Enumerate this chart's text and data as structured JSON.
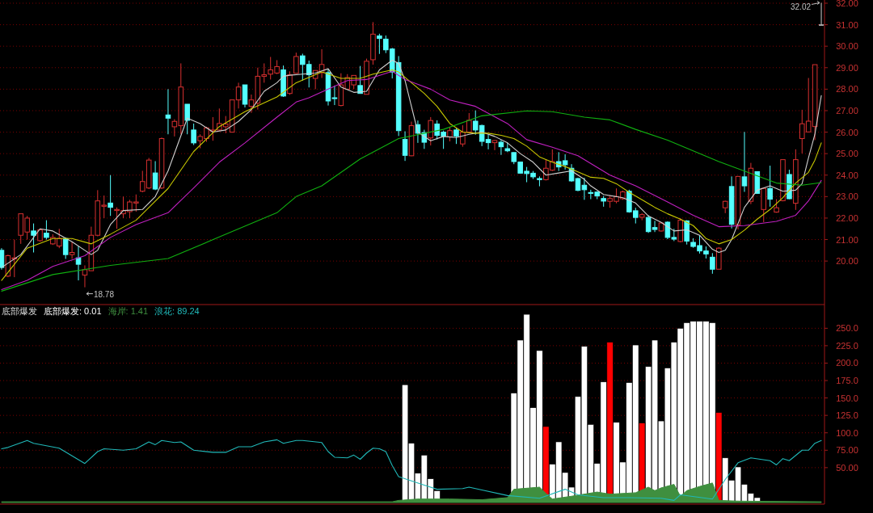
{
  "chart_data": [
    {
      "type": "candlestick",
      "categories": [
        null,
        null,
        null,
        null,
        null,
        null,
        null,
        null,
        null,
        null,
        null,
        null,
        null,
        null,
        null,
        null,
        null,
        null,
        null,
        null,
        null,
        null,
        null,
        null,
        null,
        null,
        null,
        null,
        null,
        null,
        null,
        null,
        null,
        null,
        null,
        null,
        null,
        null,
        null,
        null,
        null,
        null,
        null,
        null,
        null,
        null,
        null,
        null,
        null,
        null,
        null,
        null,
        null,
        null,
        null,
        null,
        null,
        null,
        null,
        null,
        null,
        null,
        null,
        null,
        null,
        null,
        null,
        null,
        null,
        null,
        null,
        null,
        null,
        null,
        null,
        null,
        null,
        null,
        null,
        null,
        null,
        null,
        null,
        null,
        null,
        null,
        null,
        null,
        null,
        null,
        null,
        null,
        null,
        null,
        null,
        null,
        null,
        null,
        null,
        null,
        null,
        null,
        null,
        null,
        null,
        null,
        null,
        null,
        null,
        null,
        null,
        null,
        null,
        null,
        null,
        null,
        null,
        null,
        null,
        null,
        null,
        null,
        null,
        null,
        null,
        null,
        null,
        null,
        null
      ],
      "ohlc": [
        [
          20.5,
          20.6,
          19.6,
          19.7
        ],
        [
          19.3,
          20.3,
          19.25,
          20.25
        ],
        [
          20.1,
          21.0,
          19.25,
          20.15
        ],
        [
          21.2,
          22.2,
          20.8,
          22.2
        ],
        [
          21.35,
          22.1,
          21.0,
          22.0
        ],
        [
          21.4,
          21.75,
          20.4,
          21.2
        ],
        [
          20.95,
          21.5,
          20.9,
          21.45
        ],
        [
          21.3,
          21.9,
          21.0,
          21.1
        ],
        [
          20.8,
          21.25,
          20.75,
          21.1
        ],
        [
          20.7,
          21.5,
          20.6,
          21.05
        ],
        [
          21.05,
          21.1,
          20.1,
          20.3
        ],
        [
          20.3,
          20.9,
          20.1,
          20.4
        ],
        [
          20.15,
          20.7,
          19.1,
          19.85
        ],
        [
          19.35,
          19.8,
          18.78,
          19.6
        ],
        [
          19.55,
          21.6,
          19.55,
          21.2
        ],
        [
          21.2,
          23.3,
          21.15,
          22.8
        ],
        [
          22.55,
          23.05,
          22.0,
          22.6
        ],
        [
          22.7,
          24.0,
          22.1,
          22.5
        ],
        [
          22.35,
          22.5,
          21.5,
          22.4
        ],
        [
          22.2,
          23.0,
          22.0,
          22.35
        ],
        [
          22.3,
          22.85,
          22.0,
          22.75
        ],
        [
          22.7,
          23.1,
          22.3,
          22.75
        ],
        [
          23.25,
          24.2,
          23.2,
          23.7
        ],
        [
          23.4,
          24.8,
          23.35,
          24.7
        ],
        [
          24.1,
          24.65,
          23.3,
          23.35
        ],
        [
          23.4,
          25.75,
          23.35,
          25.7
        ],
        [
          26.8,
          28.0,
          25.9,
          26.65
        ],
        [
          26.25,
          26.6,
          25.8,
          26.5
        ],
        [
          26.3,
          29.2,
          25.9,
          28.1
        ],
        [
          27.3,
          27.3,
          25.9,
          26.55
        ],
        [
          26.1,
          26.4,
          25.4,
          25.5
        ],
        [
          25.6,
          25.9,
          25.25,
          25.8
        ],
        [
          25.7,
          26.25,
          25.55,
          26.2
        ],
        [
          26.05,
          26.7,
          25.6,
          26.1
        ],
        [
          26.1,
          27.1,
          26.07,
          26.4
        ],
        [
          26.25,
          26.75,
          25.95,
          26.38
        ],
        [
          26.0,
          27.5,
          25.98,
          27.5
        ],
        [
          27.5,
          28.3,
          27.1,
          28.1
        ],
        [
          28.2,
          28.2,
          27.15,
          27.3
        ],
        [
          27.2,
          27.75,
          26.9,
          27.5
        ],
        [
          27.35,
          29.0,
          27.05,
          28.6
        ],
        [
          28.6,
          29.2,
          28.3,
          28.67
        ],
        [
          28.7,
          29.5,
          28.45,
          28.9
        ],
        [
          28.75,
          29.35,
          28.7,
          29.05
        ],
        [
          28.9,
          29.1,
          27.64,
          27.68
        ],
        [
          27.8,
          28.83,
          27.74,
          28.67
        ],
        [
          28.74,
          29.7,
          28.74,
          29.52
        ],
        [
          29.55,
          29.65,
          28.4,
          29.15
        ],
        [
          29.15,
          29.33,
          28.08,
          28.67
        ],
        [
          28.5,
          28.87,
          28.0,
          28.87
        ],
        [
          28.77,
          29.86,
          28.52,
          29.15
        ],
        [
          28.77,
          28.95,
          27.24,
          27.45
        ],
        [
          27.6,
          28.17,
          27.26,
          27.56
        ],
        [
          27.24,
          28.74,
          27.2,
          28.2
        ],
        [
          28.0,
          28.7,
          28.0,
          28.54
        ],
        [
          28.2,
          28.64,
          28.0,
          28.64
        ],
        [
          28.17,
          29.08,
          27.79,
          27.8
        ],
        [
          27.76,
          29.42,
          27.76,
          29.3
        ],
        [
          29.37,
          31.12,
          29.14,
          30.56
        ],
        [
          30.48,
          30.58,
          29.64,
          30.36
        ],
        [
          30.33,
          30.5,
          29.68,
          29.83
        ],
        [
          29.87,
          29.92,
          28.5,
          28.8
        ],
        [
          29.24,
          29.54,
          25.82,
          26.07
        ],
        [
          25.66,
          26.04,
          24.66,
          24.92
        ],
        [
          24.9,
          26.49,
          24.88,
          26.3
        ],
        [
          26.35,
          26.54,
          25.5,
          25.95
        ],
        [
          25.98,
          26.11,
          25.22,
          25.53
        ],
        [
          25.73,
          26.7,
          25.38,
          26.54
        ],
        [
          26.38,
          26.55,
          25.66,
          25.85
        ],
        [
          26.0,
          26.07,
          25.22,
          25.82
        ],
        [
          25.78,
          26.22,
          25.57,
          26.07
        ],
        [
          26.1,
          26.2,
          25.45,
          25.82
        ],
        [
          25.45,
          26.32,
          25.32,
          26.0
        ],
        [
          26.0,
          26.89,
          25.95,
          26.55
        ],
        [
          26.51,
          27.01,
          25.88,
          26.1
        ],
        [
          26.31,
          26.35,
          25.35,
          25.57
        ],
        [
          25.66,
          25.88,
          25.2,
          25.51
        ],
        [
          25.51,
          25.63,
          25.16,
          25.61
        ],
        [
          25.53,
          25.63,
          24.94,
          25.32
        ],
        [
          25.23,
          25.51,
          25.07,
          25.13
        ],
        [
          25.05,
          25.07,
          24.51,
          24.63
        ],
        [
          24.61,
          24.63,
          24.07,
          24.09
        ],
        [
          24.18,
          24.38,
          23.67,
          24.07
        ],
        [
          24.09,
          24.19,
          23.82,
          23.92
        ],
        [
          23.84,
          23.94,
          23.48,
          23.79
        ],
        [
          23.79,
          24.73,
          23.75,
          24.32
        ],
        [
          24.23,
          25.2,
          24.19,
          24.63
        ],
        [
          24.63,
          25.07,
          24.19,
          24.38
        ],
        [
          24.67,
          24.97,
          24.26,
          24.48
        ],
        [
          24.32,
          24.51,
          23.69,
          23.73
        ],
        [
          23.84,
          23.88,
          23.25,
          23.29
        ],
        [
          23.53,
          23.88,
          22.85,
          23.32
        ],
        [
          23.19,
          23.32,
          22.88,
          23.15
        ],
        [
          23.21,
          23.25,
          22.88,
          23.03
        ],
        [
          22.91,
          23.03,
          22.53,
          22.79
        ],
        [
          22.78,
          23.06,
          22.48,
          22.91
        ],
        [
          22.78,
          23.38,
          22.69,
          23.0
        ],
        [
          22.9,
          23.28,
          22.85,
          23.22
        ],
        [
          23.25,
          23.32,
          22.25,
          22.29
        ],
        [
          22.34,
          22.48,
          21.75,
          22.03
        ],
        [
          22.04,
          22.23,
          21.9,
          22.16
        ],
        [
          22.03,
          22.13,
          21.31,
          21.37
        ],
        [
          21.56,
          21.87,
          21.35,
          21.47
        ],
        [
          21.4,
          21.81,
          21.37,
          21.77
        ],
        [
          21.81,
          21.85,
          21.02,
          21.1
        ],
        [
          21.1,
          21.5,
          20.93,
          21.02
        ],
        [
          20.91,
          22.0,
          20.87,
          21.9
        ],
        [
          21.87,
          21.9,
          20.77,
          20.93
        ],
        [
          20.87,
          21.06,
          20.62,
          20.68
        ],
        [
          20.72,
          21.19,
          20.35,
          20.47
        ],
        [
          20.47,
          20.68,
          20.12,
          20.33
        ],
        [
          20.18,
          20.37,
          19.41,
          19.62
        ],
        [
          19.62,
          20.65,
          19.62,
          20.6
        ],
        [
          22.48,
          22.81,
          22.23,
          22.78
        ],
        [
          23.47,
          23.94,
          21.52,
          21.71
        ],
        [
          21.69,
          23.94,
          21.47,
          23.94
        ],
        [
          23.92,
          26.01,
          23.22,
          23.5
        ],
        [
          22.78,
          24.57,
          22.65,
          24.32
        ],
        [
          24.16,
          24.16,
          23.13,
          23.15
        ],
        [
          22.4,
          23.4,
          21.81,
          23.38
        ],
        [
          23.38,
          24.44,
          22.53,
          22.88
        ],
        [
          22.28,
          22.88,
          22.25,
          22.48
        ],
        [
          22.81,
          24.73,
          22.78,
          24.72
        ],
        [
          24.03,
          24.25,
          22.88,
          22.9
        ],
        [
          22.69,
          25.2,
          22.38,
          24.72
        ],
        [
          25.7,
          27.04,
          25.01,
          26.39
        ],
        [
          26.01,
          28.52,
          26.01,
          26.51
        ],
        [
          26.26,
          29.14,
          25.63,
          29.14
        ],
        [
          31.0,
          32.02,
          31.0,
          31.0
        ]
      ],
      "colors": [
        "#54ffff",
        "#d83030",
        "#d83030",
        "#d83030",
        "#d83030",
        "#54ffff",
        "#d83030",
        "#54ffff",
        "#d83030",
        "#d83030",
        "#54ffff",
        "#d83030",
        "#54ffff",
        "#d83030",
        "#d83030",
        "#d83030",
        "#d83030",
        "#54ffff",
        "#d83030",
        "#d83030",
        "#d83030",
        "#d83030",
        "#d83030",
        "#d83030",
        "#54ffff",
        "#d83030",
        "#54ffff",
        "#d83030",
        "#d83030",
        "#54ffff",
        "#54ffff",
        "#d83030",
        "#d83030",
        "#d83030",
        "#d83030",
        "#d83030",
        "#d83030",
        "#d83030",
        "#54ffff",
        "#d83030",
        "#d83030",
        "#d83030",
        "#d83030",
        "#d83030",
        "#54ffff",
        "#d83030",
        "#d83030",
        "#54ffff",
        "#54ffff",
        "#d83030",
        "#d83030",
        "#54ffff",
        "#54ffff",
        "#d83030",
        "#d83030",
        "#d83030",
        "#54ffff",
        "#d83030",
        "#d83030",
        "#54ffff",
        "#54ffff",
        "#54ffff",
        "#54ffff",
        "#54ffff",
        "#d83030",
        "#54ffff",
        "#54ffff",
        "#d83030",
        "#54ffff",
        "#54ffff",
        "#d83030",
        "#54ffff",
        "#d83030",
        "#d83030",
        "#54ffff",
        "#54ffff",
        "#54ffff",
        "#d83030",
        "#54ffff",
        "#54ffff",
        "#54ffff",
        "#54ffff",
        "#54ffff",
        "#54ffff",
        "#54ffff",
        "#d83030",
        "#d83030",
        "#54ffff",
        "#54ffff",
        "#54ffff",
        "#54ffff",
        "#54ffff",
        "#54ffff",
        "#54ffff",
        "#54ffff",
        "#d83030",
        "#d83030",
        "#d83030",
        "#54ffff",
        "#54ffff",
        "#d83030",
        "#54ffff",
        "#54ffff",
        "#d83030",
        "#54ffff",
        "#54ffff",
        "#d83030",
        "#54ffff",
        "#54ffff",
        "#54ffff",
        "#54ffff",
        "#54ffff",
        "#d83030",
        "#d83030",
        "#54ffff",
        "#d83030",
        "#54ffff",
        "#d83030",
        "#54ffff",
        "#d83030",
        "#54ffff",
        "#d83030",
        "#d83030",
        "#54ffff",
        "#d83030",
        "#d83030",
        "#d83030",
        "#d83030",
        "#d0d0d0"
      ],
      "series": [
        {
          "type": "line",
          "color": "#d0d0d0",
          "values": [
            19.7,
            null,
            null,
            20.3,
            null,
            null,
            21.5,
            null,
            21.4,
            null,
            null,
            20.9,
            null,
            20.5,
            20.3,
            20.5,
            null,
            21.7,
            null,
            22.35,
            null,
            null,
            22.4,
            null,
            23.0,
            null,
            24.2,
            null,
            null,
            26.65,
            null,
            26.4,
            null,
            26.0,
            null,
            26.1,
            null,
            26.5,
            null,
            27.05,
            null,
            27.9,
            null,
            28.3,
            28.6,
            28.65,
            null,
            28.7,
            null,
            28.75,
            null,
            28.95,
            null,
            28.1,
            null,
            27.85,
            null,
            27.9,
            null,
            28.9,
            null,
            29.35,
            29.2,
            28.4,
            null,
            26.0,
            null,
            25.6,
            null,
            25.8,
            null,
            25.75,
            null,
            25.9,
            null,
            26.0,
            null,
            25.8,
            null,
            25.5,
            null,
            25.0,
            null,
            24.6,
            null,
            24.0,
            null,
            24.1,
            null,
            24.2,
            null,
            23.8,
            23.5,
            null,
            23.1,
            null,
            null,
            22.95,
            null,
            22.7,
            null,
            22.1,
            null,
            21.8,
            null,
            21.4,
            null,
            21.45,
            null,
            21.2,
            null,
            20.55,
            20.4,
            20.5,
            21.0,
            null,
            22.5,
            null,
            23.3,
            null,
            23.5,
            null,
            23.25,
            null,
            23.3,
            23.6,
            24.8,
            25.9,
            27.7
          ]
        },
        {
          "type": "line",
          "color": "#c8c800",
          "values": [
            19.1,
            null,
            null,
            null,
            20.6,
            null,
            null,
            null,
            21.05,
            null,
            null,
            21.05,
            null,
            null,
            20.8,
            null,
            null,
            21.25,
            null,
            null,
            null,
            21.9,
            null,
            null,
            null,
            null,
            23.38,
            null,
            null,
            null,
            25.1,
            null,
            null,
            null,
            26.26,
            null,
            null,
            null,
            26.95,
            null,
            null,
            null,
            null,
            27.64,
            null,
            null,
            28.3,
            null,
            null,
            null,
            28.8,
            null,
            null,
            28.5,
            null,
            null,
            28.5,
            null,
            28.7,
            null,
            null,
            28.9,
            28.8,
            null,
            28.3,
            null,
            27.8,
            null,
            27.2,
            null,
            26.4,
            null,
            26.0,
            null,
            25.95,
            null,
            25.95,
            null,
            25.85,
            null,
            25.7,
            null,
            25.35,
            null,
            24.85,
            null,
            24.6,
            null,
            24.4,
            null,
            24.15,
            null,
            23.9,
            null,
            23.85,
            null,
            23.6,
            null,
            23.2,
            null,
            22.85,
            null,
            22.5,
            null,
            22.2,
            null,
            21.95,
            null,
            21.65,
            null,
            21.05,
            null,
            20.8,
            null,
            21.0,
            null,
            21.44,
            null,
            21.95,
            null,
            22.4,
            null,
            22.95,
            null,
            23.63,
            null,
            24.13,
            24.7,
            25.5
          ]
        },
        {
          "type": "line",
          "color": "#c020c0",
          "values": [
            18.67,
            null,
            null,
            null,
            19.1,
            null,
            null,
            null,
            19.75,
            null,
            null,
            null,
            null,
            20.25,
            null,
            null,
            null,
            21.1,
            null,
            null,
            null,
            21.7,
            null,
            null,
            null,
            null,
            22.25,
            null,
            null,
            null,
            23.4,
            null,
            null,
            null,
            24.6,
            null,
            null,
            null,
            25.5,
            null,
            null,
            null,
            null,
            26.7,
            null,
            null,
            27.4,
            null,
            27.6,
            null,
            null,
            28.0,
            null,
            null,
            28.4,
            null,
            null,
            28.45,
            null,
            null,
            null,
            28.83,
            null,
            28.45,
            null,
            null,
            null,
            28.0,
            null,
            null,
            27.5,
            null,
            null,
            null,
            27.2,
            null,
            null,
            null,
            null,
            26.4,
            null,
            null,
            25.65,
            null,
            null,
            null,
            25.3,
            null,
            null,
            null,
            24.9,
            null,
            null,
            null,
            null,
            24.0,
            null,
            null,
            null,
            23.5,
            null,
            null,
            null,
            null,
            22.75,
            null,
            null,
            null,
            22.13,
            null,
            null,
            null,
            21.6,
            null,
            null,
            null,
            21.65,
            null,
            null,
            null,
            null,
            21.85,
            null,
            null,
            22.13,
            null,
            22.8,
            null,
            23.75
          ]
        },
        {
          "type": "line",
          "color": "#10b010",
          "values": [
            18.6,
            null,
            null,
            null,
            null,
            null,
            null,
            null,
            19.37,
            null,
            null,
            null,
            null,
            null,
            null,
            null,
            null,
            19.8,
            null,
            null,
            null,
            null,
            null,
            null,
            null,
            null,
            20.12,
            null,
            null,
            null,
            null,
            null,
            null,
            null,
            21.12,
            null,
            null,
            null,
            null,
            null,
            null,
            null,
            null,
            22.25,
            null,
            null,
            23.0,
            null,
            null,
            null,
            23.5,
            null,
            null,
            null,
            null,
            null,
            24.75,
            null,
            null,
            null,
            null,
            null,
            25.7,
            null,
            null,
            null,
            null,
            null,
            null,
            26.13,
            null,
            null,
            null,
            null,
            null,
            26.76,
            null,
            null,
            null,
            null,
            null,
            null,
            26.99,
            null,
            null,
            null,
            26.95,
            null,
            null,
            null,
            null,
            26.7,
            null,
            null,
            null,
            26.57,
            null,
            null,
            null,
            26.13,
            null,
            null,
            null,
            null,
            25.63,
            null,
            null,
            null,
            25.13,
            null,
            null,
            null,
            24.63,
            null,
            null,
            null,
            24.19,
            null,
            null,
            null,
            null,
            23.63,
            null,
            null,
            null,
            23.53,
            null,
            null,
            23.65
          ]
        }
      ],
      "annotations": [
        "18.78",
        "32.02"
      ],
      "ylim": [
        18.05,
        32.15
      ],
      "yticks": [
        {
          "value": 20,
          "label": "20.00"
        },
        {
          "value": 21,
          "label": "21.00"
        },
        {
          "value": 22,
          "label": "22.00"
        },
        {
          "value": 23,
          "label": "23.00"
        },
        {
          "value": 24,
          "label": "24.00"
        },
        {
          "value": 25,
          "label": "25.00"
        },
        {
          "value": 26,
          "label": "26.00"
        },
        {
          "value": 27,
          "label": "27.00"
        },
        {
          "value": 28,
          "label": "28.00"
        },
        {
          "value": 29,
          "label": "29.00"
        },
        {
          "value": 30,
          "label": "30.00"
        },
        {
          "value": 31,
          "label": "31.00"
        },
        {
          "value": 32,
          "label": "32.00"
        }
      ],
      "grid": "y",
      "tick_labels": "y"
    },
    {
      "type": "bar",
      "title": "底部爆发",
      "categories": [
        null,
        null,
        null,
        null,
        null,
        null,
        null,
        null,
        null,
        null,
        null,
        null,
        null,
        null,
        null,
        null,
        null,
        null,
        null,
        null,
        null,
        null,
        null,
        null,
        null,
        null,
        null,
        null,
        null,
        null,
        null,
        null,
        null,
        null,
        null,
        null,
        null,
        null,
        null,
        null,
        null,
        null,
        null,
        null,
        null,
        null,
        null,
        null,
        null,
        null,
        null,
        null,
        null,
        null,
        null,
        null,
        null,
        null,
        null,
        null,
        null,
        null,
        null,
        null,
        null,
        null,
        null,
        null,
        null,
        null,
        null,
        null,
        null,
        null,
        null,
        null,
        null,
        null,
        null,
        null,
        null,
        null,
        null,
        null,
        null,
        null,
        null,
        null,
        null,
        null,
        null,
        null,
        null,
        null,
        null,
        null,
        null,
        null,
        null,
        null,
        null,
        null,
        null,
        null,
        null,
        null,
        null,
        null,
        null,
        null,
        null,
        null,
        null,
        null,
        null,
        null,
        null,
        null,
        null,
        null,
        null,
        null,
        null,
        null,
        null,
        null,
        null,
        null,
        null
      ],
      "series": [
        {
          "name": "底部爆发: 0.01",
          "type": "bar",
          "color": "#ffffff",
          "values": [
            null,
            null,
            null,
            null,
            null,
            null,
            null,
            null,
            null,
            null,
            null,
            null,
            null,
            null,
            null,
            null,
            null,
            null,
            null,
            null,
            null,
            null,
            null,
            null,
            null,
            null,
            null,
            null,
            null,
            null,
            null,
            null,
            null,
            null,
            null,
            null,
            null,
            null,
            null,
            null,
            null,
            null,
            null,
            null,
            null,
            null,
            null,
            null,
            null,
            null,
            null,
            null,
            null,
            null,
            null,
            null,
            null,
            null,
            null,
            null,
            null,
            null,
            null,
            169,
            85,
            42,
            68,
            34,
            17,
            null,
            null,
            null,
            null,
            null,
            null,
            null,
            null,
            null,
            null,
            null,
            157,
            233,
            270,
            136,
            218,
            null,
            55,
            87,
            43,
            22,
            152,
            224,
            112,
            56,
            173,
            null,
            115,
            58,
            172,
            226,
            null,
            195,
            233,
            117,
            193,
            230,
            250,
            258,
            260,
            260,
            260,
            258,
            null,
            64,
            32,
            51,
            26,
            13,
            7,
            null,
            null,
            null,
            null,
            null,
            null,
            null,
            null,
            null,
            null
          ]
        },
        {
          "type": "bar",
          "color": "#ff0000",
          "values": [
            null,
            null,
            null,
            null,
            null,
            null,
            null,
            null,
            null,
            null,
            null,
            null,
            null,
            null,
            null,
            null,
            null,
            null,
            null,
            null,
            null,
            null,
            null,
            null,
            null,
            null,
            null,
            null,
            null,
            null,
            null,
            null,
            null,
            null,
            null,
            null,
            null,
            null,
            null,
            null,
            null,
            null,
            null,
            null,
            null,
            null,
            null,
            null,
            null,
            null,
            null,
            null,
            null,
            null,
            null,
            null,
            null,
            null,
            null,
            null,
            null,
            null,
            null,
            null,
            null,
            null,
            null,
            null,
            null,
            null,
            null,
            null,
            null,
            null,
            null,
            null,
            null,
            null,
            null,
            null,
            null,
            null,
            null,
            null,
            null,
            109,
            null,
            null,
            null,
            null,
            null,
            null,
            null,
            null,
            null,
            230,
            null,
            null,
            null,
            null,
            114,
            null,
            null,
            null,
            null,
            null,
            null,
            null,
            null,
            null,
            null,
            null,
            129,
            null,
            null,
            null,
            null,
            null,
            null,
            null,
            null,
            null,
            null,
            null,
            null,
            null,
            null,
            null,
            null
          ]
        },
        {
          "name": "海岸: 1.41",
          "type": "area",
          "color": "#3f8f3f",
          "values": [
            1,
            null,
            null,
            null,
            null,
            null,
            null,
            null,
            null,
            null,
            null,
            null,
            null,
            null,
            null,
            null,
            null,
            null,
            null,
            null,
            null,
            null,
            null,
            null,
            null,
            null,
            null,
            null,
            null,
            null,
            null,
            null,
            null,
            null,
            null,
            null,
            null,
            null,
            null,
            null,
            null,
            null,
            null,
            null,
            null,
            null,
            null,
            null,
            null,
            null,
            null,
            null,
            null,
            null,
            null,
            null,
            null,
            null,
            null,
            null,
            null,
            1,
            3,
            null,
            null,
            5,
            null,
            null,
            null,
            null,
            5,
            null,
            null,
            null,
            null,
            4,
            null,
            null,
            null,
            7,
            19,
            null,
            null,
            null,
            22,
            13,
            5,
            null,
            null,
            9,
            null,
            null,
            null,
            15,
            null,
            12,
            null,
            null,
            null,
            14,
            null,
            22,
            17,
            21,
            null,
            26,
            9,
            17,
            null,
            23,
            null,
            28,
            3,
            null,
            null,
            2,
            null,
            null,
            null,
            null,
            null,
            null,
            null,
            null,
            null,
            null,
            null,
            null,
            1
          ]
        },
        {
          "name": "浪花: 89.24",
          "type": "line",
          "color": "#20b8b8",
          "values": [
            77,
            79,
            null,
            null,
            89,
            85,
            null,
            null,
            null,
            78,
            null,
            null,
            null,
            56,
            null,
            73,
            77,
            null,
            null,
            75,
            null,
            77,
            null,
            87,
            83,
            89,
            null,
            86,
            87,
            null,
            75,
            null,
            null,
            72,
            null,
            72,
            null,
            80,
            null,
            80,
            null,
            87,
            null,
            90,
            85,
            null,
            89,
            89,
            null,
            null,
            86,
            73,
            65,
            null,
            64,
            68,
            62,
            71,
            78,
            77,
            73,
            53,
            37,
            null,
            31,
            null,
            25,
            null,
            19,
            null,
            null,
            null,
            20,
            22,
            null,
            18,
            null,
            null,
            null,
            10,
            null,
            null,
            null,
            null,
            6,
            null,
            null,
            null,
            19,
            null,
            11,
            null,
            null,
            null,
            7,
            null,
            null,
            null,
            7,
            null,
            null,
            null,
            null,
            6,
            null,
            3,
            11,
            null,
            null,
            null,
            null,
            5,
            null,
            33,
            null,
            57,
            null,
            64,
            null,
            null,
            60,
            54,
            63,
            60,
            null,
            75,
            75,
            85,
            89
          ]
        }
      ],
      "ylim": [
        0,
        284
      ],
      "yticks": [
        {
          "value": 50,
          "label": "50.00"
        },
        {
          "value": 75,
          "label": "75.00"
        },
        {
          "value": 100,
          "label": "100.0"
        },
        {
          "value": 125,
          "label": "125.0"
        },
        {
          "value": 150,
          "label": "150.0"
        },
        {
          "value": 175,
          "label": "175.0"
        },
        {
          "value": 200,
          "label": "200.0"
        },
        {
          "value": 225,
          "label": "225.0"
        },
        {
          "value": 250,
          "label": "250.0"
        }
      ],
      "grid": "y",
      "tick_labels": "y",
      "legend": "top left"
    }
  ]
}
